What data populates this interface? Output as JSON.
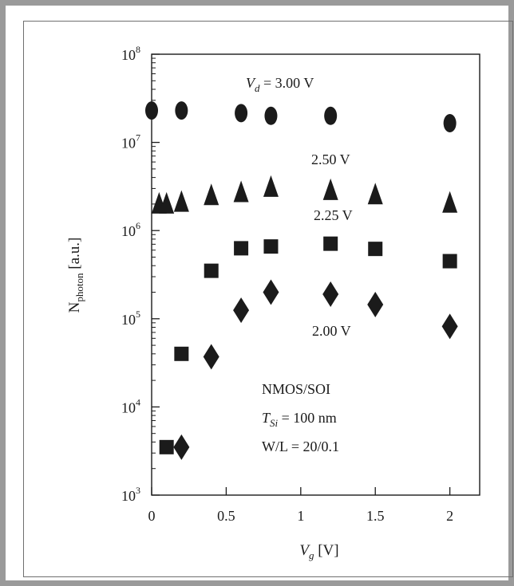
{
  "chart_data": {
    "type": "scatter",
    "xlabel": {
      "main": "V",
      "sub": "g",
      "unit": " [V]"
    },
    "ylabel": {
      "main": "N",
      "sub": "photon",
      "unit": " [a.u.]"
    },
    "xlim": [
      0,
      2.2
    ],
    "ylim": [
      1000,
      100000000
    ],
    "yscale": "log",
    "grid": false,
    "x_ticks": [
      0,
      0.5,
      1,
      1.5,
      2
    ],
    "x_tick_labels": [
      "0",
      "0.5",
      "1",
      "1.5",
      "2"
    ],
    "y_ticks": [
      {
        "value": 1000,
        "base": "10",
        "exp": "3"
      },
      {
        "value": 10000,
        "base": "10",
        "exp": "4"
      },
      {
        "value": 100000,
        "base": "10",
        "exp": "5"
      },
      {
        "value": 1000000,
        "base": "10",
        "exp": "6"
      },
      {
        "value": 10000000,
        "base": "10",
        "exp": "7"
      },
      {
        "value": 100000000,
        "base": "10",
        "exp": "8"
      }
    ],
    "series": [
      {
        "name": "V_d = 3.00 V",
        "marker": "circle",
        "x": [
          0,
          0.2,
          0.6,
          0.8,
          1.2,
          2.0
        ],
        "y": [
          23000000,
          23000000,
          21500000,
          20000000,
          20000000,
          16500000
        ]
      },
      {
        "name": "2.50 V",
        "marker": "triangle",
        "x": [
          0.05,
          0.1,
          0.2,
          0.4,
          0.6,
          0.8,
          1.2,
          1.5,
          2.0
        ],
        "y": [
          2000000,
          2000000,
          2100000,
          2500000,
          2700000,
          3100000,
          2850000,
          2550000,
          2050000
        ]
      },
      {
        "name": "2.25 V",
        "marker": "square",
        "x": [
          0.1,
          0.2,
          0.4,
          0.6,
          0.8,
          1.2,
          1.5,
          2.0
        ],
        "y": [
          3500,
          40000,
          350000,
          630000,
          660000,
          710000,
          620000,
          450000
        ]
      },
      {
        "name": "2.00 V",
        "marker": "diamond",
        "x": [
          0.2,
          0.4,
          0.6,
          0.8,
          1.2,
          1.5,
          2.0
        ],
        "y": [
          3500,
          37000,
          125000,
          200000,
          190000,
          145000,
          82000
        ]
      }
    ],
    "annotations": {
      "vd_label": {
        "prefix": "V",
        "sub": "d",
        "suffix": " = 3.00 V"
      },
      "v250": "2.50 V",
      "v225": "2.25 V",
      "v200": "2.00 V",
      "device": "NMOS/SOI",
      "tsi": {
        "prefix": "T",
        "sub": "Si",
        "suffix": " = 100 nm"
      },
      "wl": "W/L = 20/0.1"
    },
    "marker_color": "#1b1b1b"
  }
}
